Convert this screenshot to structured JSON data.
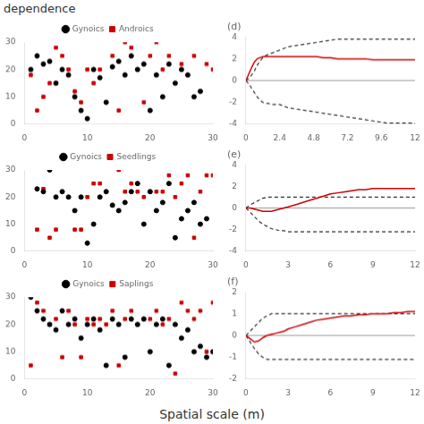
{
  "title": "dependence",
  "xlabel": "Spatial scale (m)",
  "chart_data": [
    {
      "type": "scatter",
      "xlim": [
        0,
        30
      ],
      "ylim": [
        0,
        30
      ],
      "xticks": [
        0,
        10,
        20,
        30
      ],
      "yticks": [
        0,
        10,
        20,
        30
      ],
      "grid": false,
      "legend": "top",
      "series": [
        {
          "name": "Gynoics",
          "color": "#000000",
          "marker": "circle",
          "x": [
            1,
            2,
            3,
            4,
            5,
            6,
            7,
            8,
            9,
            10,
            11,
            12,
            13,
            14,
            15,
            16,
            17,
            18,
            19,
            20,
            21,
            22,
            23,
            24,
            25,
            26,
            27,
            28
          ],
          "values": [
            20,
            25,
            22,
            23,
            15,
            20,
            18,
            10,
            5,
            2,
            20,
            17,
            8,
            21,
            23,
            18,
            25,
            20,
            22,
            5,
            18,
            10,
            22,
            15,
            20,
            18,
            10,
            12
          ]
        },
        {
          "name": "Androics",
          "color": "#cc0000",
          "marker": "square",
          "x": [
            1,
            2,
            3,
            4,
            5,
            6,
            7,
            8,
            9,
            10,
            11,
            12,
            14,
            15,
            16,
            17,
            18,
            19,
            20,
            21,
            22,
            23,
            25,
            27,
            28,
            29,
            30
          ],
          "values": [
            18,
            5,
            10,
            15,
            28,
            25,
            20,
            12,
            8,
            20,
            15,
            20,
            25,
            5,
            30,
            28,
            20,
            8,
            25,
            30,
            20,
            25,
            22,
            25,
            12,
            22,
            20
          ]
        }
      ]
    },
    {
      "type": "scatter",
      "xlim": [
        0,
        30
      ],
      "ylim": [
        0,
        30
      ],
      "xticks": [
        0,
        10,
        20,
        30
      ],
      "yticks": [
        0,
        10,
        20,
        30
      ],
      "grid": false,
      "legend": "top",
      "series": [
        {
          "name": "Gynoics",
          "color": "#000000",
          "marker": "circle",
          "x": [
            2,
            3,
            4,
            5,
            6,
            7,
            8,
            9,
            10,
            11,
            12,
            13,
            14,
            15,
            16,
            17,
            18,
            19,
            20,
            21,
            22,
            23,
            24,
            25,
            26,
            27,
            28,
            29
          ],
          "values": [
            23,
            22,
            30,
            20,
            22,
            20,
            15,
            20,
            3,
            10,
            20,
            22,
            17,
            15,
            18,
            22,
            25,
            10,
            22,
            15,
            18,
            25,
            5,
            12,
            15,
            18,
            10,
            12
          ]
        },
        {
          "name": "Seedlings",
          "color": "#cc0000",
          "marker": "square",
          "x": [
            2,
            3,
            4,
            5,
            8,
            9,
            10,
            11,
            12,
            15,
            16,
            17,
            18,
            19,
            20,
            21,
            22,
            23,
            24,
            25,
            26,
            27,
            28,
            29,
            30
          ],
          "values": [
            8,
            23,
            5,
            8,
            8,
            8,
            20,
            25,
            25,
            30,
            22,
            25,
            22,
            20,
            22,
            22,
            22,
            28,
            20,
            25,
            28,
            5,
            22,
            28,
            28
          ]
        }
      ]
    },
    {
      "type": "scatter",
      "xlim": [
        0,
        30
      ],
      "ylim": [
        0,
        30
      ],
      "xticks": [
        0,
        10,
        20,
        30
      ],
      "yticks": [
        0,
        10,
        20,
        30
      ],
      "grid": false,
      "legend": "top",
      "series": [
        {
          "name": "Gynoics",
          "color": "#000000",
          "marker": "circle",
          "x": [
            1,
            2,
            3,
            4,
            5,
            6,
            7,
            8,
            9,
            10,
            11,
            12,
            13,
            14,
            15,
            16,
            17,
            18,
            19,
            20,
            21,
            22,
            23,
            24,
            25,
            26,
            27,
            28,
            29,
            30
          ],
          "values": [
            30,
            25,
            22,
            20,
            18,
            25,
            20,
            22,
            15,
            20,
            22,
            18,
            5,
            22,
            20,
            8,
            22,
            20,
            22,
            10,
            20,
            22,
            5,
            20,
            15,
            18,
            10,
            12,
            8,
            10
          ]
        },
        {
          "name": "Saplings",
          "color": "#cc0000",
          "marker": "square",
          "x": [
            1,
            2,
            3,
            4,
            5,
            6,
            7,
            8,
            9,
            10,
            11,
            12,
            13,
            14,
            15,
            16,
            17,
            18,
            19,
            20,
            21,
            22,
            23,
            24,
            25,
            26,
            27,
            28,
            29,
            30
          ],
          "values": [
            5,
            28,
            25,
            20,
            22,
            8,
            25,
            20,
            8,
            22,
            20,
            22,
            20,
            25,
            5,
            22,
            25,
            20,
            22,
            22,
            25,
            20,
            22,
            2,
            28,
            25,
            22,
            25,
            10,
            28
          ]
        }
      ]
    },
    {
      "type": "line",
      "title": "(d)",
      "xlim": [
        0,
        12
      ],
      "ylim": [
        -4,
        4
      ],
      "yticks": [
        -4,
        -2,
        0,
        2,
        4
      ],
      "xticks": [
        0,
        2.4,
        4.8,
        7.2,
        9.6,
        12
      ],
      "grid": false,
      "hline": 0,
      "x": [
        0.0,
        0.2,
        0.4,
        0.6,
        0.8,
        1.0,
        1.2,
        1.4,
        1.6,
        1.8,
        2.0,
        2.2,
        2.4,
        2.6,
        2.8,
        3.0,
        3.5,
        4.0,
        4.5,
        5.0,
        5.5,
        6.0,
        6.5,
        7.0,
        7.5,
        8.0,
        8.5,
        9.0,
        9.5,
        10.0,
        10.5,
        11.0,
        11.5,
        12.0
      ],
      "series": [
        {
          "color": "#cc0000",
          "line_style": "solid",
          "values": [
            0.0,
            0.6,
            1.2,
            1.7,
            2.0,
            2.1,
            2.2,
            2.2,
            2.2,
            2.2,
            2.2,
            2.2,
            2.2,
            2.2,
            2.2,
            2.2,
            2.2,
            2.2,
            2.2,
            2.2,
            2.1,
            2.1,
            2.0,
            2.0,
            2.0,
            2.0,
            2.0,
            1.9,
            1.9,
            1.9,
            1.9,
            1.9,
            1.9,
            1.9
          ]
        },
        {
          "color": "#333333",
          "line_style": "dashed",
          "values": [
            0.0,
            0.2,
            0.5,
            0.9,
            1.4,
            1.8,
            2.1,
            2.3,
            2.4,
            2.5,
            2.6,
            2.7,
            2.8,
            2.9,
            3.0,
            3.1,
            3.2,
            3.3,
            3.4,
            3.5,
            3.6,
            3.7,
            3.8,
            3.8,
            3.8,
            3.8,
            3.8,
            3.8,
            3.8,
            3.8,
            3.8,
            3.8,
            3.8,
            3.8
          ]
        },
        {
          "color": "#333333",
          "line_style": "dashed",
          "values": [
            0.0,
            -0.3,
            -0.7,
            -1.1,
            -1.5,
            -1.8,
            -2.0,
            -2.1,
            -2.1,
            -2.2,
            -2.2,
            -2.2,
            -2.2,
            -2.3,
            -2.4,
            -2.5,
            -2.6,
            -2.7,
            -2.8,
            -2.9,
            -3.0,
            -3.1,
            -3.2,
            -3.3,
            -3.4,
            -3.5,
            -3.6,
            -3.7,
            -3.8,
            -3.9,
            -3.9,
            -3.9,
            -3.9,
            -3.9
          ]
        }
      ]
    },
    {
      "type": "line",
      "title": "(e)",
      "xlim": [
        0,
        12
      ],
      "ylim": [
        -4,
        4
      ],
      "yticks": [
        -4,
        -2,
        0,
        2,
        4
      ],
      "xticks": [
        0,
        3,
        6,
        9,
        12
      ],
      "grid": false,
      "hline": 0,
      "x": [
        0.0,
        0.3,
        0.6,
        0.9,
        1.2,
        1.5,
        1.8,
        2.1,
        2.4,
        2.7,
        3.0,
        3.5,
        4.0,
        4.5,
        5.0,
        5.5,
        6.0,
        6.5,
        7.0,
        7.5,
        8.0,
        8.5,
        9.0,
        9.5,
        10.0,
        10.5,
        11.0,
        11.5,
        12.0
      ],
      "series": [
        {
          "color": "#cc0000",
          "line_style": "solid",
          "values": [
            0.0,
            0.0,
            -0.1,
            -0.2,
            -0.3,
            -0.3,
            -0.3,
            -0.2,
            -0.1,
            0.0,
            0.1,
            0.3,
            0.5,
            0.7,
            0.9,
            1.1,
            1.3,
            1.4,
            1.5,
            1.6,
            1.7,
            1.7,
            1.8,
            1.8,
            1.8,
            1.8,
            1.8,
            1.8,
            1.8
          ]
        },
        {
          "color": "#333333",
          "line_style": "dashed",
          "values": [
            0.0,
            0.3,
            0.5,
            0.7,
            0.9,
            1.0,
            1.0,
            1.0,
            1.0,
            1.0,
            1.0,
            1.0,
            1.0,
            1.0,
            1.0,
            1.0,
            1.0,
            1.0,
            1.0,
            1.0,
            1.0,
            1.0,
            1.0,
            1.0,
            1.0,
            1.0,
            1.0,
            1.0,
            1.0
          ]
        },
        {
          "color": "#333333",
          "line_style": "dashed",
          "values": [
            0.0,
            -0.4,
            -0.8,
            -1.2,
            -1.5,
            -1.7,
            -1.9,
            -2.0,
            -2.1,
            -2.1,
            -2.2,
            -2.2,
            -2.2,
            -2.2,
            -2.2,
            -2.2,
            -2.2,
            -2.2,
            -2.2,
            -2.2,
            -2.2,
            -2.2,
            -2.2,
            -2.2,
            -2.2,
            -2.2,
            -2.2,
            -2.2,
            -2.2
          ]
        }
      ]
    },
    {
      "type": "line",
      "title": "(f)",
      "xlim": [
        0,
        12
      ],
      "ylim": [
        -2,
        2
      ],
      "yticks": [
        -2,
        -1,
        0,
        1,
        2
      ],
      "xticks": [
        0,
        3,
        6,
        9,
        12
      ],
      "grid": false,
      "hline": 0,
      "x": [
        0.0,
        0.3,
        0.6,
        0.9,
        1.2,
        1.5,
        1.8,
        2.1,
        2.4,
        2.7,
        3.0,
        3.5,
        4.0,
        4.5,
        5.0,
        5.5,
        6.0,
        6.5,
        7.0,
        7.5,
        8.0,
        8.5,
        9.0,
        9.5,
        10.0,
        10.5,
        11.0,
        11.5,
        12.0
      ],
      "series": [
        {
          "color": "#cc0000",
          "line_style": "solid",
          "values": [
            0.0,
            -0.15,
            -0.3,
            -0.25,
            -0.1,
            0.0,
            0.05,
            0.1,
            0.15,
            0.2,
            0.3,
            0.4,
            0.5,
            0.6,
            0.7,
            0.75,
            0.8,
            0.85,
            0.9,
            0.9,
            0.95,
            0.95,
            1.0,
            1.0,
            1.0,
            1.05,
            1.05,
            1.1,
            1.1
          ]
        },
        {
          "color": "#333333",
          "line_style": "dashed",
          "values": [
            0.0,
            0.2,
            0.4,
            0.6,
            0.8,
            0.9,
            1.0,
            1.0,
            1.0,
            1.0,
            1.0,
            1.0,
            1.0,
            1.0,
            1.0,
            1.0,
            1.0,
            1.0,
            1.0,
            1.0,
            1.0,
            1.0,
            1.0,
            1.0,
            1.0,
            1.0,
            1.0,
            1.0,
            1.0
          ]
        },
        {
          "color": "#333333",
          "line_style": "dashed",
          "values": [
            0.0,
            -0.3,
            -0.6,
            -0.85,
            -1.0,
            -1.1,
            -1.1,
            -1.1,
            -1.1,
            -1.1,
            -1.1,
            -1.1,
            -1.1,
            -1.1,
            -1.1,
            -1.1,
            -1.1,
            -1.1,
            -1.1,
            -1.1,
            -1.1,
            -1.1,
            -1.1,
            -1.1,
            -1.1,
            -1.1,
            -1.1,
            -1.1,
            -1.1
          ]
        }
      ]
    }
  ]
}
